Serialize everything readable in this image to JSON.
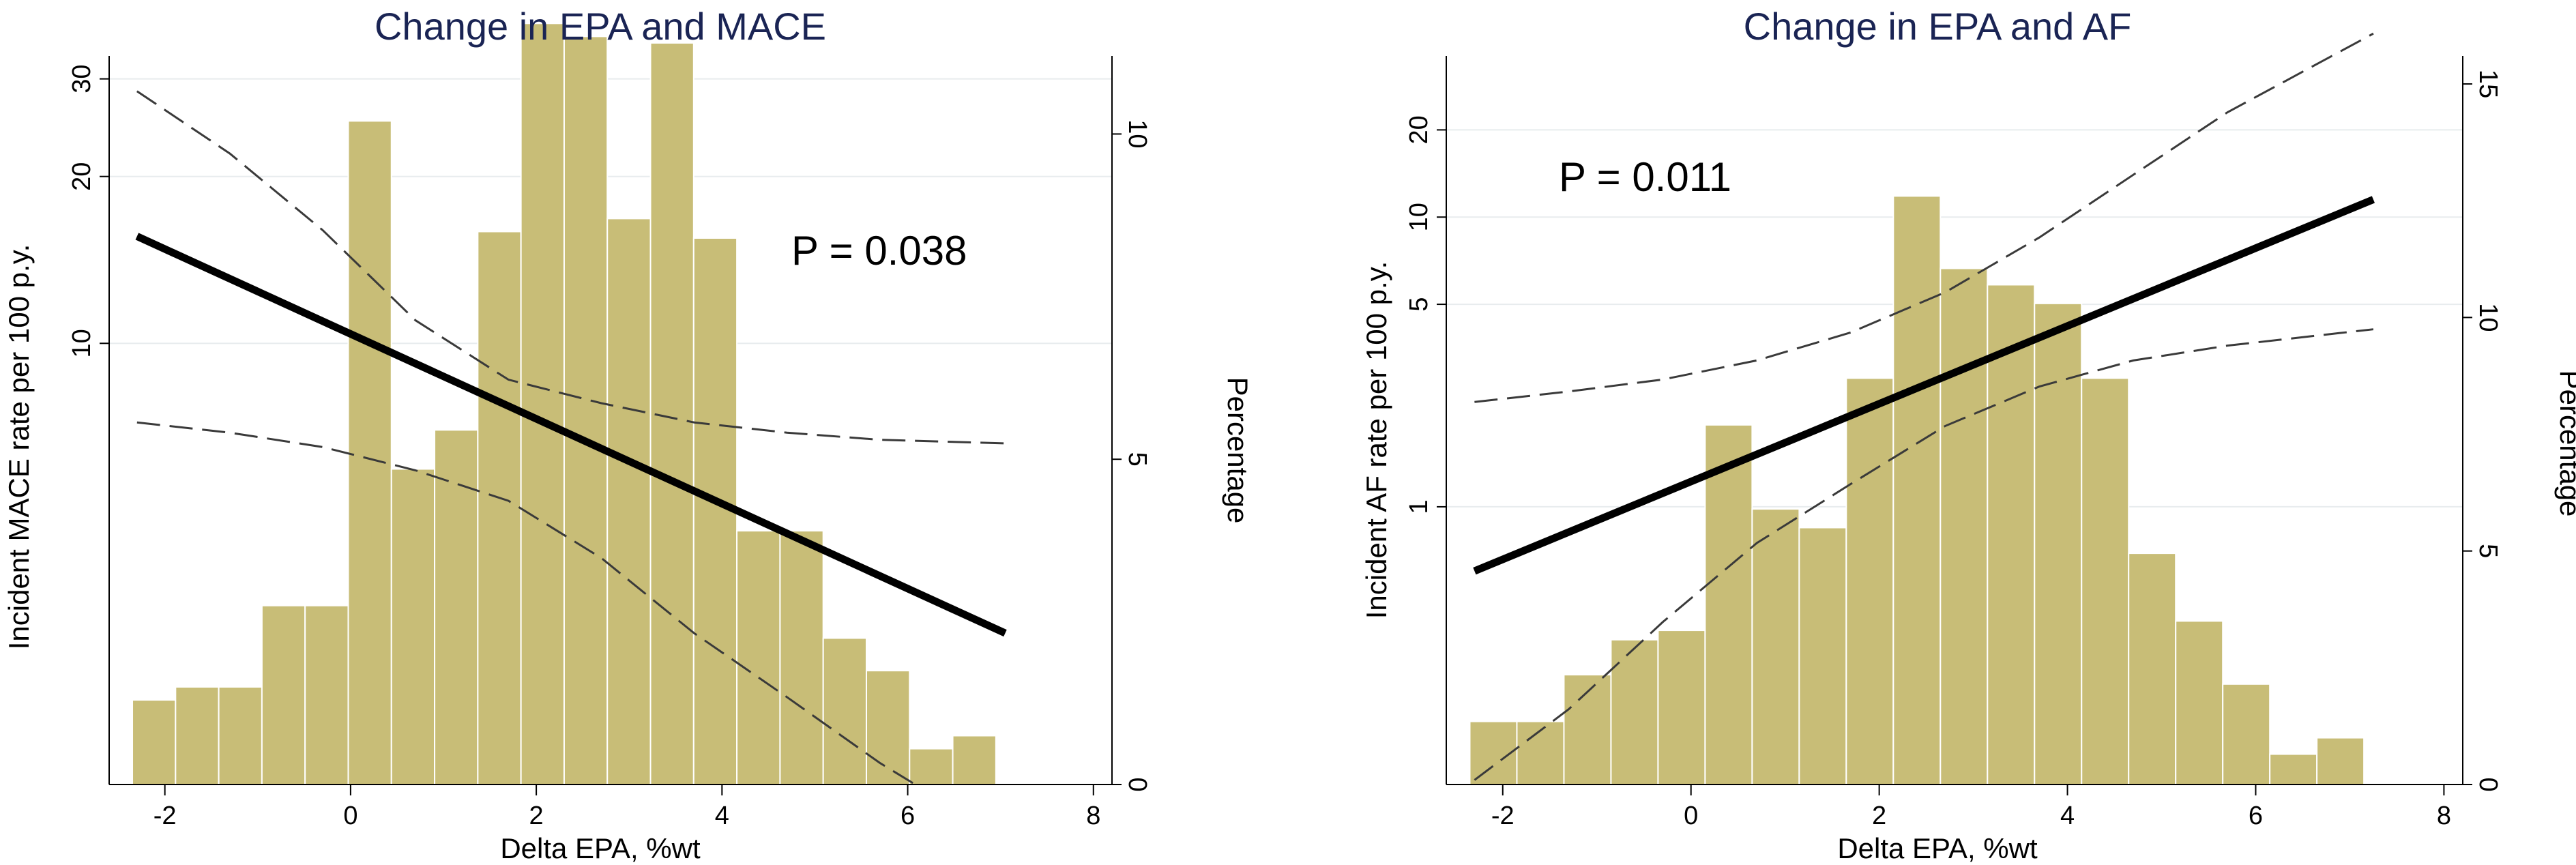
{
  "colors": {
    "bar_fill": "#c8bd77",
    "bar_stroke": "#ffffff",
    "fit_line": "#000000",
    "ci_line": "#3a3a3a",
    "grid": "#e8ecee",
    "title": "#1a2454"
  },
  "chart_data": [
    {
      "type": "bar+line",
      "title": "Change in EPA and MACE",
      "xlabel": "Delta EPA, %wt",
      "ylabel_left": "Incident MACE rate per 100 p.y.",
      "ylabel_right": "Percentage",
      "annotation": "P = 0.038",
      "x_ticks": [
        -2,
        0,
        2,
        4,
        6,
        8
      ],
      "xlim": [
        -2.6,
        8.2
      ],
      "left_axis": {
        "scale": "log",
        "ticks": [
          10,
          20,
          30
        ],
        "ylim": [
          1.6,
          33
        ]
      },
      "right_axis": {
        "scale": "linear",
        "ticks": [
          0,
          5,
          10
        ],
        "ylim": [
          0,
          11.2
        ]
      },
      "histogram": {
        "bin_width": 0.465,
        "bin_start": -2.35,
        "percentages": [
          1.3,
          1.5,
          1.5,
          2.75,
          2.75,
          10.2,
          4.85,
          5.45,
          8.5,
          11.7,
          11.5,
          8.7,
          11.4,
          8.4,
          3.9,
          3.9,
          2.25,
          1.75,
          0.55,
          0.75
        ]
      },
      "fit": {
        "x": [
          -2.3,
          7.05
        ],
        "y": [
          15.6,
          3.0
        ]
      },
      "ci_upper": {
        "x": [
          -2.3,
          -1.3,
          -0.3,
          0.7,
          1.7,
          2.7,
          3.7,
          4.7,
          5.7,
          7.05
        ],
        "y": [
          28.5,
          22.0,
          16.0,
          11.0,
          8.6,
          7.8,
          7.2,
          6.9,
          6.7,
          6.6
        ]
      },
      "ci_lower": {
        "x": [
          -2.3,
          -1.3,
          -0.3,
          0.7,
          1.7,
          2.7,
          3.7,
          4.7,
          5.7,
          6.5,
          7.05
        ],
        "y": [
          7.2,
          6.9,
          6.5,
          5.9,
          5.2,
          4.1,
          3.0,
          2.3,
          1.75,
          1.45,
          1.18
        ]
      }
    },
    {
      "type": "bar+line",
      "title": "Change in EPA and AF",
      "xlabel": "Delta EPA, %wt",
      "ylabel_left": "Incident AF rate per 100 p.y.",
      "ylabel_right": "Percentage",
      "annotation": "P = 0.011",
      "x_ticks": [
        -2,
        0,
        2,
        4,
        6,
        8
      ],
      "xlim": [
        -2.6,
        8.2
      ],
      "left_axis": {
        "scale": "log",
        "ticks": [
          1,
          5,
          10,
          20
        ],
        "ylim": [
          0.11,
          36
        ]
      },
      "right_axis": {
        "scale": "linear",
        "ticks": [
          0,
          5,
          10,
          15
        ],
        "ylim": [
          0,
          15.6
        ]
      },
      "histogram": {
        "bin_width": 0.5,
        "bin_start": -2.35,
        "percentages": [
          1.35,
          1.35,
          2.35,
          3.1,
          3.3,
          7.7,
          5.9,
          5.5,
          8.7,
          12.6,
          11.05,
          10.7,
          10.3,
          8.7,
          4.95,
          3.5,
          2.15,
          0.65,
          1.0
        ]
      },
      "fit": {
        "x": [
          -2.3,
          7.25
        ],
        "y": [
          0.6,
          11.5
        ]
      },
      "ci_upper": {
        "x": [
          -2.3,
          -1.3,
          -0.3,
          0.7,
          1.7,
          2.7,
          3.7,
          4.7,
          5.7,
          7.25
        ],
        "y": [
          2.3,
          2.5,
          2.75,
          3.2,
          4.0,
          5.5,
          8.5,
          14.0,
          23.0,
          43.0
        ]
      },
      "ci_lower": {
        "x": [
          -2.3,
          -1.3,
          -0.3,
          0.7,
          1.7,
          2.7,
          3.7,
          4.7,
          5.7,
          7.25
        ],
        "y": [
          0.114,
          0.2,
          0.4,
          0.75,
          1.2,
          1.9,
          2.6,
          3.2,
          3.6,
          4.1
        ]
      }
    }
  ]
}
